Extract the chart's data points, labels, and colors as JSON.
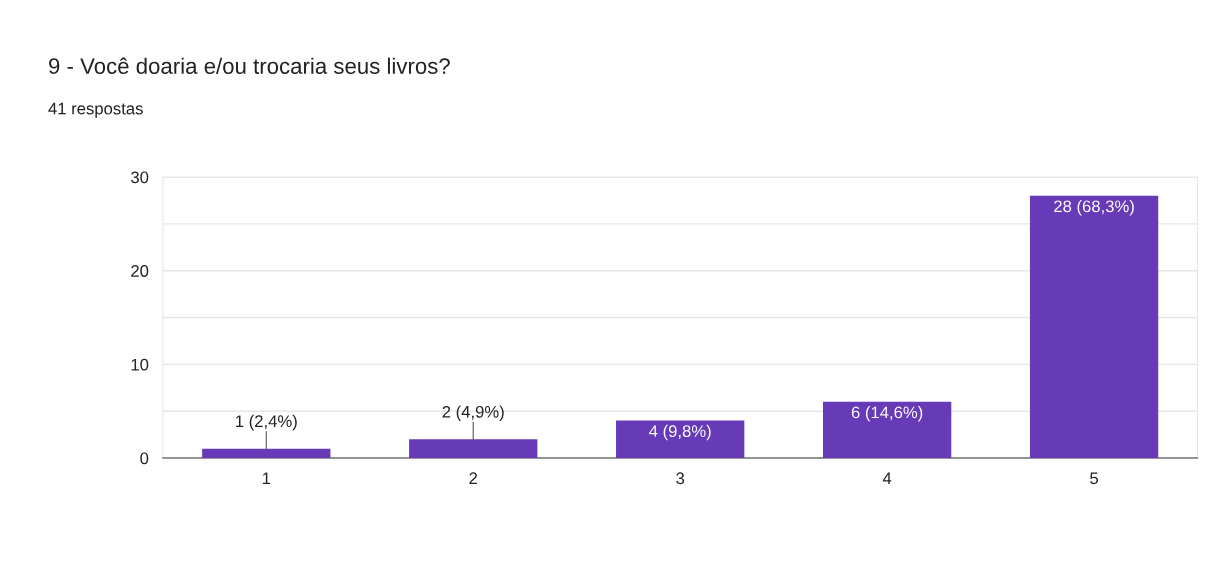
{
  "chart_data": {
    "type": "bar",
    "title": "9 - Você doaria e/ou trocaria seus livros?",
    "subtitle": "41 respostas",
    "categories": [
      "1",
      "2",
      "3",
      "4",
      "5"
    ],
    "values": [
      1,
      2,
      4,
      6,
      28
    ],
    "value_labels": [
      "1 (2,4%)",
      "2 (4,9%)",
      "4 (9,8%)",
      "6 (14,6%)",
      "28 (68,3%)"
    ],
    "color": "#673ab7",
    "ylim": [
      0,
      30
    ],
    "yticks": [
      0,
      {
        "value": 5,
        "label": null
      },
      10,
      {
        "value": 15,
        "label": null
      },
      20,
      {
        "value": 25,
        "label": null
      },
      30
    ],
    "grid": "y"
  }
}
